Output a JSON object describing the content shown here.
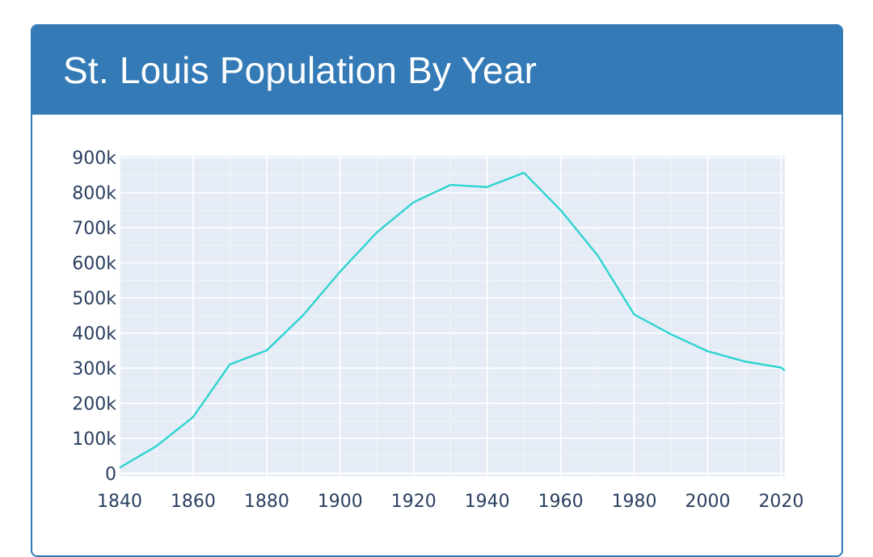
{
  "card": {
    "title": "St. Louis Population By Year"
  },
  "colors": {
    "header_bg": "#337ab7",
    "plot_bg": "#e5ecf6",
    "grid": "#ffffff",
    "line": "#2dd4cf",
    "tick_text": "#2a3f5f"
  },
  "chart_data": {
    "type": "line",
    "title": "",
    "xlabel": "",
    "ylabel": "",
    "x": [
      1840,
      1850,
      1860,
      1870,
      1880,
      1890,
      1900,
      1910,
      1920,
      1930,
      1940,
      1950,
      1960,
      1970,
      1980,
      1990,
      2000,
      2010,
      2020,
      2021
    ],
    "series": [
      {
        "values": [
          16469,
          77860,
          160773,
          310864,
          350518,
          451770,
          575238,
          687029,
          772897,
          821960,
          816048,
          856796,
          750026,
          622236,
          452801,
          396685,
          348189,
          319294,
          301578,
          293310
        ]
      }
    ],
    "xlim": [
      1840,
      2021
    ],
    "ylim": [
      -8000,
      905000
    ],
    "x_ticks": [
      1840,
      1860,
      1880,
      1900,
      1920,
      1940,
      1960,
      1980,
      2000,
      2020
    ],
    "x_tick_labels": [
      "1840",
      "1860",
      "1880",
      "1900",
      "1920",
      "1940",
      "1960",
      "1980",
      "2000",
      "2020"
    ],
    "y_ticks": [
      0,
      100000,
      200000,
      300000,
      400000,
      500000,
      600000,
      700000,
      800000,
      900000
    ],
    "y_tick_labels": [
      "0",
      "100k",
      "200k",
      "300k",
      "400k",
      "500k",
      "600k",
      "700k",
      "800k",
      "900k"
    ],
    "grid": true,
    "legend": "none"
  }
}
